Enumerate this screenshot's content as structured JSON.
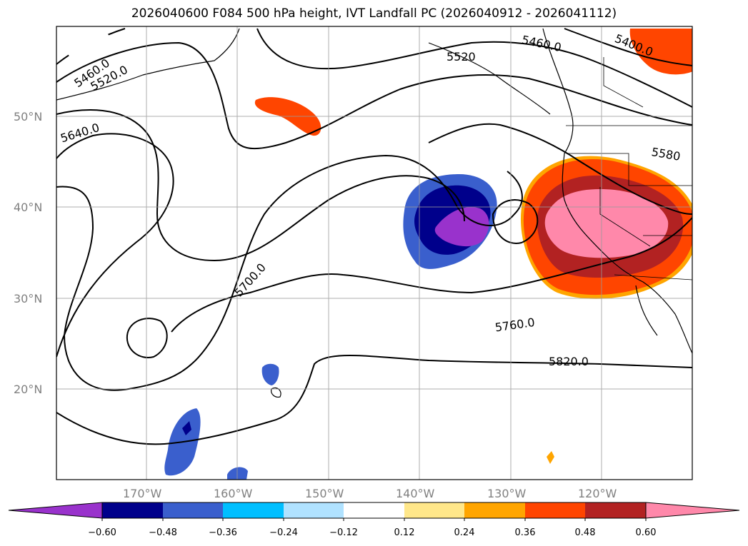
{
  "title": "2026040600 F084 500 hPa height, IVT Landfall PC (2026040912 - 2026041112)",
  "map": {
    "lat_labels": [
      "50°N",
      "40°N",
      "30°N",
      "20°N"
    ],
    "lon_labels": [
      "170°W",
      "160°W",
      "150°W",
      "140°W",
      "130°W",
      "120°W"
    ],
    "gridlines": true
  },
  "height_contours": {
    "labels": [
      "5460.0",
      "5520.0",
      "5640.0",
      "5700.0",
      "5760.0",
      "5820.0",
      "5460.0",
      "5400.0",
      "5580",
      "5520"
    ]
  },
  "colorbar": {
    "ticks": [
      "−0.60",
      "−0.48",
      "−0.36",
      "−0.24",
      "−0.12",
      "0.12",
      "0.24",
      "0.36",
      "0.48",
      "0.60"
    ],
    "colors": [
      "#9932cc",
      "#00008b",
      "#3a5fcd",
      "#00bfff",
      "#b0e2ff",
      "#ffffff",
      "#ffe78a",
      "#ffa500",
      "#ff4500",
      "#b22222",
      "#ff88aa"
    ]
  }
}
